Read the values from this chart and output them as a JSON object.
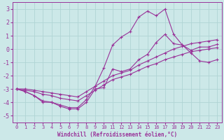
{
  "xlabel": "Windchill (Refroidissement éolien,°C)",
  "bg_color": "#cce8e8",
  "grid_color": "#b0d4d4",
  "line_color": "#993399",
  "xlim": [
    -0.5,
    23.5
  ],
  "ylim": [
    -5.5,
    3.5
  ],
  "yticks": [
    -5,
    -4,
    -3,
    -2,
    -1,
    0,
    1,
    2,
    3
  ],
  "xticks": [
    0,
    1,
    2,
    3,
    4,
    5,
    6,
    7,
    8,
    9,
    10,
    11,
    12,
    13,
    14,
    15,
    16,
    17,
    18,
    19,
    20,
    21,
    22,
    23
  ],
  "series": [
    {
      "x": [
        0,
        1,
        2,
        3,
        4,
        5,
        6,
        7,
        8,
        9,
        10,
        11,
        12,
        13,
        14,
        15,
        16,
        17,
        18,
        19,
        20,
        21,
        22,
        23
      ],
      "y": [
        -3.0,
        -3.2,
        -3.5,
        -3.9,
        -4.0,
        -4.2,
        -4.4,
        -4.4,
        -3.8,
        -2.8,
        -1.4,
        0.3,
        0.9,
        1.3,
        2.4,
        2.85,
        2.5,
        3.0,
        1.1,
        0.3,
        -0.3,
        -0.9,
        -1.0,
        -0.8
      ]
    },
    {
      "x": [
        0,
        1,
        2,
        3,
        4,
        5,
        6,
        7,
        8,
        9,
        10,
        11,
        12,
        13,
        14,
        15,
        16,
        17,
        18,
        19,
        20,
        21,
        22,
        23
      ],
      "y": [
        -3.0,
        -3.2,
        -3.5,
        -4.0,
        -4.0,
        -4.3,
        -4.5,
        -4.5,
        -4.0,
        -3.0,
        -2.9,
        -1.5,
        -1.7,
        -1.5,
        -0.8,
        -0.4,
        0.5,
        1.1,
        0.4,
        0.3,
        -0.1,
        0.15,
        0.15,
        0.35
      ]
    },
    {
      "x": [
        0,
        1,
        2,
        3,
        4,
        5,
        6,
        7,
        8,
        9,
        10,
        11,
        12,
        13,
        14,
        15,
        16,
        17,
        18,
        19,
        20,
        21,
        22,
        23
      ],
      "y": [
        -3.0,
        -3.0,
        -3.1,
        -3.2,
        -3.3,
        -3.4,
        -3.5,
        -3.6,
        -3.2,
        -2.8,
        -2.4,
        -2.0,
        -1.8,
        -1.6,
        -1.2,
        -0.9,
        -0.6,
        -0.3,
        0.0,
        0.2,
        0.4,
        0.5,
        0.6,
        0.7
      ]
    },
    {
      "x": [
        0,
        1,
        2,
        3,
        4,
        5,
        6,
        7,
        8,
        9,
        10,
        11,
        12,
        13,
        14,
        15,
        16,
        17,
        18,
        19,
        20,
        21,
        22,
        23
      ],
      "y": [
        -3.0,
        -3.1,
        -3.2,
        -3.4,
        -3.5,
        -3.7,
        -3.8,
        -3.9,
        -3.5,
        -3.1,
        -2.7,
        -2.3,
        -2.1,
        -1.9,
        -1.6,
        -1.3,
        -1.1,
        -0.8,
        -0.6,
        -0.4,
        -0.2,
        -0.1,
        0.0,
        0.1
      ]
    }
  ]
}
